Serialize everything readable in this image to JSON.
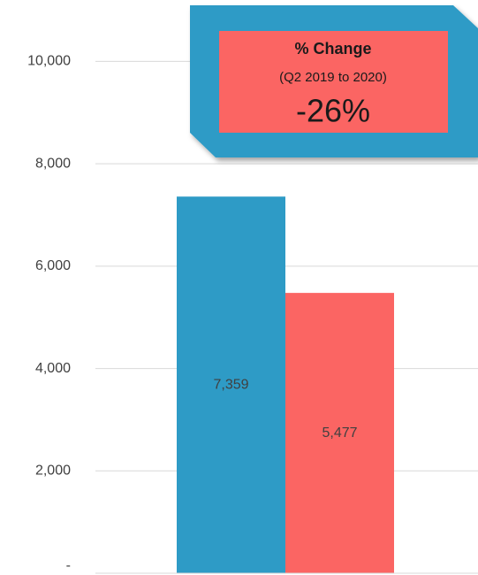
{
  "chart_data": {
    "type": "bar",
    "categories": [
      null,
      null
    ],
    "values": [
      7359,
      5477
    ],
    "value_labels": [
      "7,359",
      "5,477"
    ],
    "colors": [
      "#2e9bc6",
      "#fb6563"
    ],
    "ylim": [
      0,
      11200
    ],
    "yticks": [
      {
        "value": 0,
        "label": "-"
      },
      {
        "value": 2000,
        "label": "2,000"
      },
      {
        "value": 4000,
        "label": "4,000"
      },
      {
        "value": 6000,
        "label": "6,000"
      },
      {
        "value": 8000,
        "label": "8,000"
      },
      {
        "value": 10000,
        "label": "10,000"
      }
    ],
    "grid": true,
    "annotation": {
      "title": "% Change",
      "subtitle": "(Q2 2019 to 2020)",
      "text": "-26%"
    }
  }
}
